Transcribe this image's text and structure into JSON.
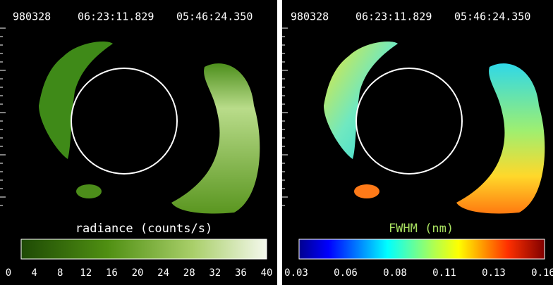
{
  "panels": [
    {
      "header": {
        "date": "980328",
        "time1": "06:23:11.829",
        "time2": "05:46:24.350"
      },
      "colorbar": {
        "label": "radiance (counts/s)",
        "ticks": [
          "0",
          "4",
          "8",
          "12",
          "16",
          "20",
          "24",
          "28",
          "32",
          "36",
          "40"
        ]
      }
    },
    {
      "header": {
        "date": "980328",
        "time1": "06:23:11.829",
        "time2": "05:46:24.350"
      },
      "colorbar": {
        "label": "FWHM (nm)",
        "ticks": [
          "0.03",
          "0.06",
          "0.08",
          "0.11",
          "0.13",
          "0.16"
        ]
      }
    }
  ]
}
